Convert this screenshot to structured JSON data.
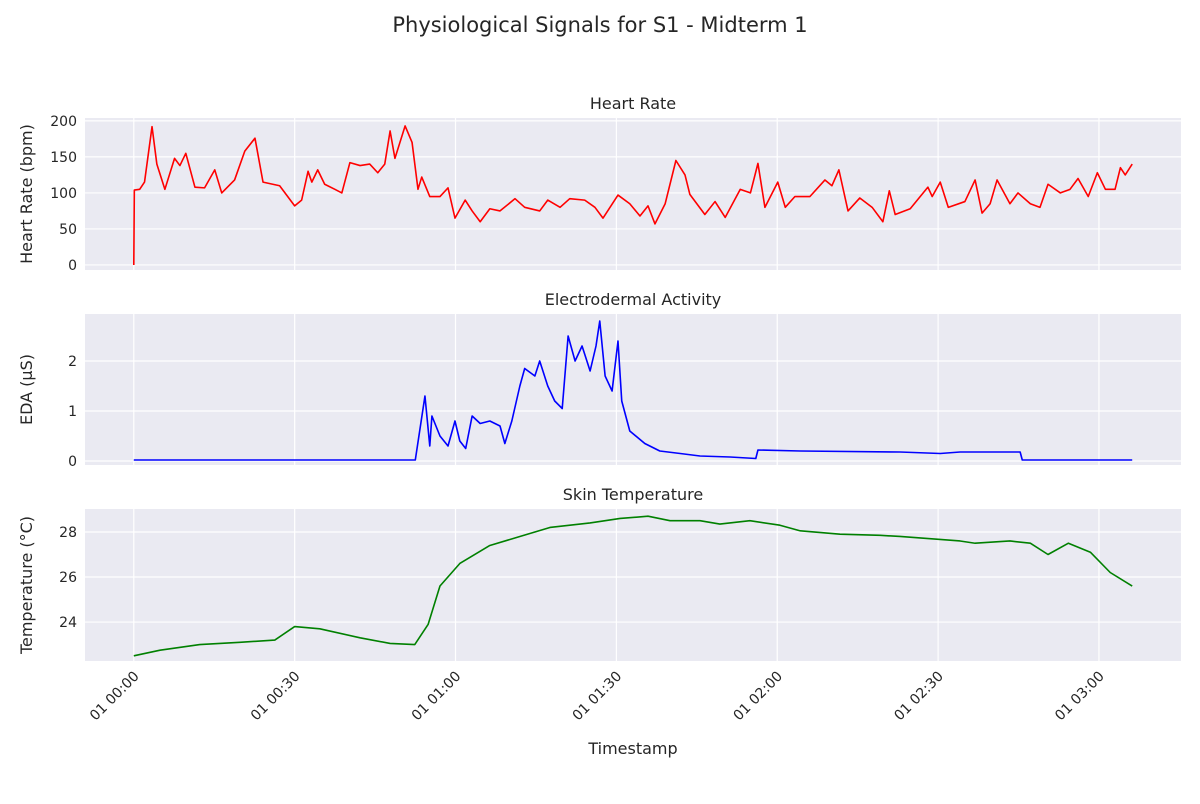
{
  "title": "Physiological Signals for S1 - Midterm 1",
  "chart_data": [
    {
      "type": "line",
      "title": "Heart Rate",
      "ylabel": "Heart Rate (bpm)",
      "color": "#ff0000",
      "x": [
        0,
        0.1,
        1.1,
        2,
        3.4,
        4.3,
        5.8,
        7.6,
        8.6,
        9.7,
        11.4,
        13.2,
        15.1,
        16.4,
        18.8,
        20.7,
        22.6,
        24.1,
        27.2,
        30,
        31.3,
        32.5,
        33.2,
        34.3,
        35.6,
        37.5,
        38.8,
        40.3,
        42.2,
        44,
        45.5,
        46.8,
        47.8,
        48.7,
        50.6,
        51.9,
        53,
        53.7,
        55.2,
        57.1,
        58.6,
        59.9,
        61.8,
        63.1,
        64.6,
        66.4,
        68.3,
        71.1,
        72.9,
        75.7,
        77.2,
        79.5,
        81.3,
        84.1,
        86,
        87.5,
        90.3,
        92.5,
        94.4,
        95.9,
        97.2,
        99.1,
        101.1,
        102.8,
        103.7,
        106.5,
        108.4,
        110.3,
        113.1,
        115,
        116.4,
        117.7,
        120.1,
        121.5,
        123.3,
        126.1,
        128.9,
        130.2,
        131.5,
        133.2,
        135.4,
        137.7,
        139.7,
        140.9,
        142,
        144.8,
        148.1,
        148.9,
        150.4,
        151.9,
        155,
        156.9,
        158.2,
        159.7,
        161,
        163.4,
        164.9,
        167.2,
        169,
        170.5,
        172.8,
        174.6,
        176.1,
        178,
        179.7,
        181.2,
        183,
        184,
        184.9,
        186.2
      ],
      "values": [
        0,
        104,
        105,
        115,
        192,
        140,
        105,
        148,
        138,
        155,
        108,
        107,
        132,
        100,
        118,
        158,
        176,
        115,
        110,
        82,
        90,
        130,
        115,
        132,
        112,
        105,
        100,
        142,
        138,
        140,
        128,
        140,
        186,
        148,
        193,
        170,
        105,
        122,
        95,
        95,
        107,
        65,
        90,
        75,
        60,
        78,
        75,
        92,
        80,
        75,
        90,
        80,
        92,
        90,
        80,
        65,
        97,
        85,
        68,
        82,
        57,
        85,
        145,
        125,
        98,
        70,
        88,
        66,
        105,
        100,
        141,
        80,
        115,
        80,
        95,
        95,
        118,
        110,
        132,
        75,
        93,
        80,
        60,
        103,
        70,
        78,
        108,
        95,
        115,
        80,
        88,
        118,
        72,
        85,
        118,
        85,
        100,
        85,
        80,
        112,
        100,
        105,
        120,
        95,
        128,
        105,
        105,
        135,
        125,
        140
      ],
      "xlim": [
        -9.1,
        195.3
      ],
      "ylim": [
        -7,
        204
      ],
      "yticks": [
        0,
        50,
        100,
        150,
        200
      ],
      "grid": true
    },
    {
      "type": "line",
      "title": "Electrodermal Activity",
      "ylabel": "EDA (µS)",
      "color": "#0000ff",
      "x": [
        0,
        52.5,
        54.3,
        55.2,
        55.6,
        57.1,
        58.6,
        59.9,
        60.8,
        61.9,
        63.1,
        64.6,
        66.4,
        68.3,
        69.2,
        70.5,
        72,
        72.9,
        74.8,
        75.7,
        77.2,
        78.5,
        79.9,
        81,
        82.3,
        83.6,
        85.1,
        86.2,
        86.9,
        87.9,
        89.2,
        90.3,
        91,
        92.5,
        95.3,
        98.1,
        101.9,
        105.6,
        111.2,
        116,
        116.4,
        124.3,
        142.9,
        150.4,
        154.1,
        165.3,
        165.7,
        186.2
      ],
      "values": [
        0.02,
        0.02,
        1.3,
        0.3,
        0.9,
        0.5,
        0.3,
        0.8,
        0.4,
        0.25,
        0.9,
        0.75,
        0.8,
        0.7,
        0.35,
        0.8,
        1.5,
        1.85,
        1.7,
        2.0,
        1.5,
        1.2,
        1.05,
        2.5,
        2.0,
        2.3,
        1.8,
        2.3,
        2.8,
        1.7,
        1.4,
        2.4,
        1.2,
        0.6,
        0.35,
        0.2,
        0.15,
        0.1,
        0.08,
        0.05,
        0.22,
        0.2,
        0.18,
        0.15,
        0.18,
        0.18,
        0.02,
        0.02
      ],
      "xlim": [
        -9.1,
        195.3
      ],
      "ylim": [
        -0.08,
        2.94
      ],
      "yticks": [
        0,
        1,
        2
      ],
      "grid": true
    },
    {
      "type": "line",
      "title": "Skin Temperature",
      "ylabel": "Temperature (°C)",
      "xlabel": "Timestamp",
      "color": "#008000",
      "x": [
        0,
        4.9,
        12.3,
        19.8,
        26.3,
        30,
        34.7,
        42.2,
        47.8,
        52.4,
        54.9,
        57.1,
        60.8,
        66.4,
        72,
        77.6,
        85.1,
        90.7,
        95.9,
        100,
        105.6,
        109.3,
        114.9,
        120.5,
        124.3,
        131.7,
        139.2,
        142.9,
        154.1,
        156.9,
        163.4,
        167.2,
        170.5,
        174.3,
        178.4,
        182.1,
        186.2
      ],
      "values": [
        22.5,
        22.75,
        23.0,
        23.1,
        23.2,
        23.8,
        23.7,
        23.3,
        23.05,
        23.0,
        23.9,
        25.6,
        26.6,
        27.4,
        27.8,
        28.2,
        28.4,
        28.6,
        28.7,
        28.5,
        28.5,
        28.35,
        28.5,
        28.3,
        28.05,
        27.9,
        27.85,
        27.8,
        27.6,
        27.5,
        27.6,
        27.5,
        27.0,
        27.5,
        27.1,
        26.2,
        25.6
      ],
      "xlim": [
        -9.1,
        195.3
      ],
      "ylim": [
        22.27,
        29.02
      ],
      "yticks": [
        24,
        26,
        28
      ],
      "grid": true,
      "xticks": [
        {
          "value": 0,
          "label": "01 00:00"
        },
        {
          "value": 30,
          "label": "01 00:30"
        },
        {
          "value": 60,
          "label": "01 01:00"
        },
        {
          "value": 90,
          "label": "01 01:30"
        },
        {
          "value": 120,
          "label": "01 02:00"
        },
        {
          "value": 150,
          "label": "01 02:30"
        },
        {
          "value": 180,
          "label": "01 03:00"
        }
      ]
    }
  ]
}
